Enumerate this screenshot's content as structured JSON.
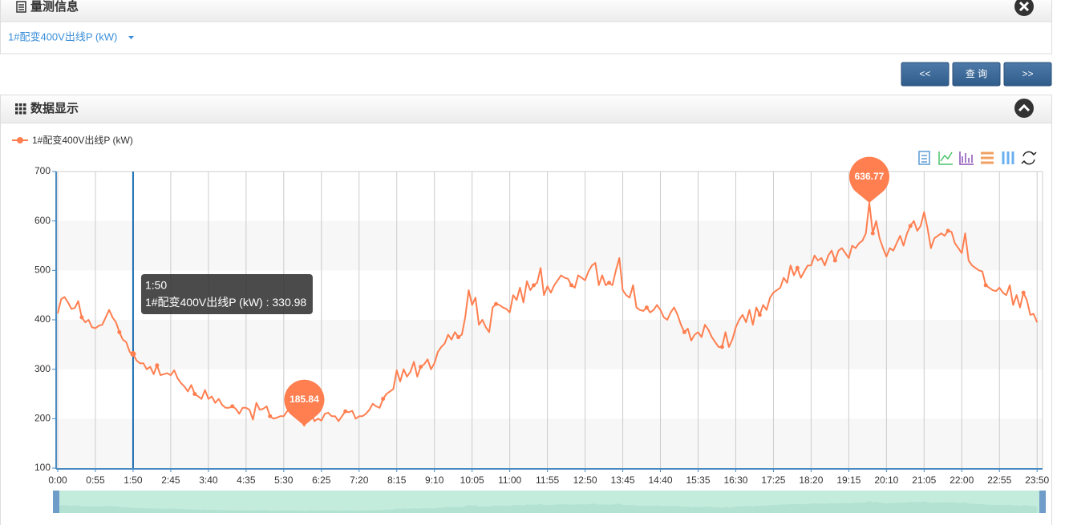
{
  "header": {
    "title": "量测信息"
  },
  "selector": {
    "label": "1#配变400V出线P (kW)"
  },
  "buttons": [
    "<<",
    "查 询",
    ">>"
  ],
  "panel": {
    "title": "数据显示"
  },
  "chart_data": {
    "type": "line",
    "categories": [
      "0:00",
      null,
      null,
      null,
      null,
      null,
      null,
      null,
      null,
      null,
      null,
      "0:55",
      null,
      null,
      null,
      null,
      null,
      null,
      null,
      null,
      null,
      null,
      "1:50",
      null,
      null,
      null,
      null,
      null,
      null,
      null,
      null,
      null,
      null,
      "2:45",
      null,
      null,
      null,
      null,
      null,
      null,
      null,
      null,
      null,
      null,
      "3:40",
      null,
      null,
      null,
      null,
      null,
      null,
      null,
      null,
      null,
      null,
      "4:35",
      null,
      null,
      null,
      null,
      null,
      null,
      null,
      null,
      null,
      null,
      "5:30",
      null,
      null,
      null,
      null,
      null,
      null,
      null,
      null,
      null,
      null,
      "6:25",
      null,
      null,
      null,
      null,
      null,
      null,
      null,
      null,
      null,
      null,
      "7:20",
      null,
      null,
      null,
      null,
      null,
      null,
      null,
      null,
      null,
      null,
      "8:15",
      null,
      null,
      null,
      null,
      null,
      null,
      null,
      null,
      null,
      null,
      "9:10",
      null,
      null,
      null,
      null,
      null,
      null,
      null,
      null,
      null,
      null,
      "10:05",
      null,
      null,
      null,
      null,
      null,
      null,
      null,
      null,
      null,
      null,
      "11:00",
      null,
      null,
      null,
      null,
      null,
      null,
      null,
      null,
      null,
      null,
      "11:55",
      null,
      null,
      null,
      null,
      null,
      null,
      null,
      null,
      null,
      null,
      "12:50",
      null,
      null,
      null,
      null,
      null,
      null,
      null,
      null,
      null,
      null,
      "13:45",
      null,
      null,
      null,
      null,
      null,
      null,
      null,
      null,
      null,
      null,
      "14:40",
      null,
      null,
      null,
      null,
      null,
      null,
      null,
      null,
      null,
      null,
      "15:35",
      null,
      null,
      null,
      null,
      null,
      null,
      null,
      null,
      null,
      null,
      "16:30",
      null,
      null,
      null,
      null,
      null,
      null,
      null,
      null,
      null,
      null,
      "17:25",
      null,
      null,
      null,
      null,
      null,
      null,
      null,
      null,
      null,
      null,
      "18:20",
      null,
      null,
      null,
      null,
      null,
      null,
      null,
      null,
      null,
      null,
      "19:15",
      null,
      null,
      null,
      null,
      null,
      null,
      null,
      null,
      null,
      null,
      "20:10",
      null,
      null,
      null,
      null,
      null,
      null,
      null,
      null,
      null,
      null,
      "21:05",
      null,
      null,
      null,
      null,
      null,
      null,
      null,
      null,
      null,
      null,
      "22:00",
      null,
      null,
      null,
      null,
      null,
      null,
      null,
      null,
      null,
      null,
      "22:55",
      null,
      null,
      null,
      null,
      null,
      null,
      null,
      null,
      null,
      null,
      "23:50"
    ],
    "series": [
      {
        "name": "1#配变400V出线P (kW)",
        "color": "#ff7f50",
        "values": [
          413,
          442,
          446,
          435,
          422,
          424,
          438,
          405,
          395,
          400,
          385,
          383,
          388,
          390,
          405,
          420,
          405,
          395,
          375,
          360,
          355,
          335,
          330.98,
          318,
          312,
          312,
          300,
          305,
          290,
          308,
          288,
          290,
          292,
          288,
          298,
          282,
          272,
          265,
          255,
          268,
          250,
          245,
          240,
          258,
          240,
          245,
          232,
          240,
          228,
          222,
          222,
          225,
          220,
          210,
          222,
          222,
          218,
          198,
          232,
          218,
          220,
          225,
          205,
          200,
          202,
          205,
          205,
          215,
          220,
          210,
          203,
          196,
          185.84,
          200,
          210,
          195,
          200,
          196,
          210,
          212,
          205,
          205,
          195,
          205,
          215,
          213,
          216,
          200,
          205,
          205,
          210,
          218,
          230,
          225,
          222,
          240,
          250,
          255,
          260,
          298,
          275,
          300,
          285,
          295,
          315,
          285,
          305,
          310,
          320,
          300,
          312,
          335,
          345,
          352,
          370,
          360,
          375,
          365,
          370,
          405,
          460,
          430,
          445,
          390,
          400,
          385,
          375,
          425,
          432,
          430,
          425,
          422,
          415,
          450,
          440,
          465,
          435,
          478,
          460,
          470,
          475,
          505,
          450,
          468,
          455,
          470,
          480,
          490,
          485,
          483,
          470,
          465,
          490,
          485,
          480,
          498,
          510,
          515,
          470,
          490,
          470,
          475,
          470,
          500,
          525,
          460,
          450,
          445,
          470,
          425,
          420,
          418,
          425,
          415,
          420,
          430,
          420,
          405,
          400,
          415,
          425,
          410,
          390,
          375,
          382,
          358,
          370,
          375,
          365,
          390,
          380,
          365,
          355,
          345,
          345,
          375,
          345,
          360,
          385,
          400,
          410,
          395,
          420,
          390,
          425,
          410,
          430,
          420,
          445,
          455,
          460,
          465,
          485,
          475,
          510,
          490,
          505,
          485,
          498,
          510,
          510,
          530,
          520,
          525,
          510,
          530,
          540,
          520,
          540,
          545,
          535,
          525,
          550,
          545,
          555,
          560,
          575,
          636.77,
          575,
          600,
          565,
          545,
          528,
          545,
          540,
          555,
          570,
          550,
          575,
          590,
          600,
          580,
          590,
          618,
          585,
          545,
          565,
          570,
          575,
          570,
          580,
          578,
          555,
          545,
          535,
          575,
          520,
          510,
          505,
          500,
          498,
          470,
          465,
          460,
          458,
          465,
          455,
          450,
          470,
          430,
          450,
          425,
          455,
          440,
          410,
          412,
          395
        ]
      }
    ],
    "ylim": [
      100,
      700
    ],
    "yticks": [
      100,
      200,
      300,
      400,
      500,
      600,
      700
    ],
    "grid": true,
    "split_area": true,
    "mark_points": [
      "max",
      "min"
    ],
    "tooltip": {
      "index": 22,
      "separator": " : "
    }
  }
}
